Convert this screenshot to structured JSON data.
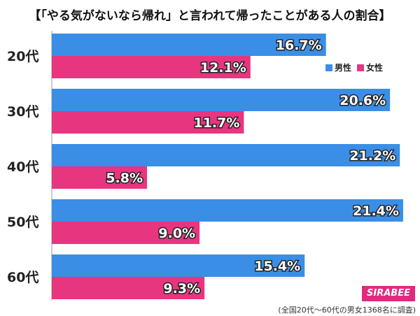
{
  "title": "【「やる気がないなら帰れ」と言われて帰ったことがある人の割合】",
  "note": "(全国20代～60代の男女1368名に調査)",
  "brand": "SIRABEE",
  "chart_data": {
    "type": "bar",
    "orientation": "horizontal",
    "title": "【「やる気がないなら帰れ」と言われて帰ったことがある人の割合】",
    "categories": [
      "20代",
      "30代",
      "40代",
      "50代",
      "60代"
    ],
    "series": [
      {
        "name": "男性",
        "color": "#3a8ee6",
        "values": [
          16.7,
          20.6,
          21.2,
          21.4,
          15.4
        ]
      },
      {
        "name": "女性",
        "color": "#e8357f",
        "values": [
          12.1,
          11.7,
          5.8,
          9.0,
          9.3
        ]
      }
    ],
    "value_labels": [
      [
        "16.7%",
        "12.1%"
      ],
      [
        "20.6%",
        "11.7%"
      ],
      [
        "21.2%",
        "5.8%"
      ],
      [
        "21.4%",
        "9.0%"
      ],
      [
        "15.4%",
        "9.3%"
      ]
    ],
    "xlim": [
      0,
      22
    ],
    "legend": "top-right"
  }
}
